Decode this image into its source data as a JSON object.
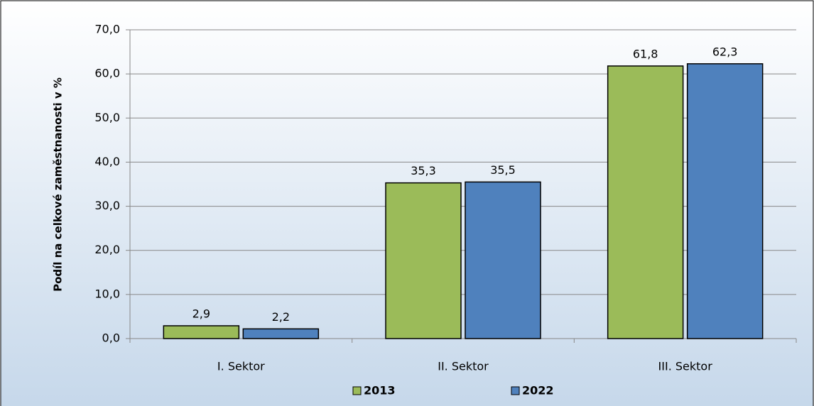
{
  "chart_data": {
    "type": "bar",
    "y_axis_label": "Podíl na celkové zaměstnanosti v %",
    "categories": [
      "I. Sektor",
      "II. Sektor",
      "III. Sektor"
    ],
    "series": [
      {
        "name": "2013",
        "color": "#9bbb59",
        "values": [
          2.9,
          35.3,
          61.8
        ],
        "value_labels": [
          "2,9",
          "35,3",
          "61,8"
        ]
      },
      {
        "name": "2022",
        "color": "#4f81bd",
        "values": [
          2.2,
          35.5,
          62.3
        ],
        "value_labels": [
          "2,2",
          "35,5",
          "62,3"
        ]
      }
    ],
    "ylim": [
      0,
      70
    ],
    "yticks": [
      {
        "value": 0,
        "label": "0,0"
      },
      {
        "value": 10,
        "label": "10,0"
      },
      {
        "value": 20,
        "label": "20,0"
      },
      {
        "value": 30,
        "label": "30,0"
      },
      {
        "value": 40,
        "label": "40,0"
      },
      {
        "value": 50,
        "label": "50,0"
      },
      {
        "value": 60,
        "label": "60,0"
      },
      {
        "value": 70,
        "label": "70,0"
      }
    ],
    "grid": true,
    "legend": "bottom"
  }
}
